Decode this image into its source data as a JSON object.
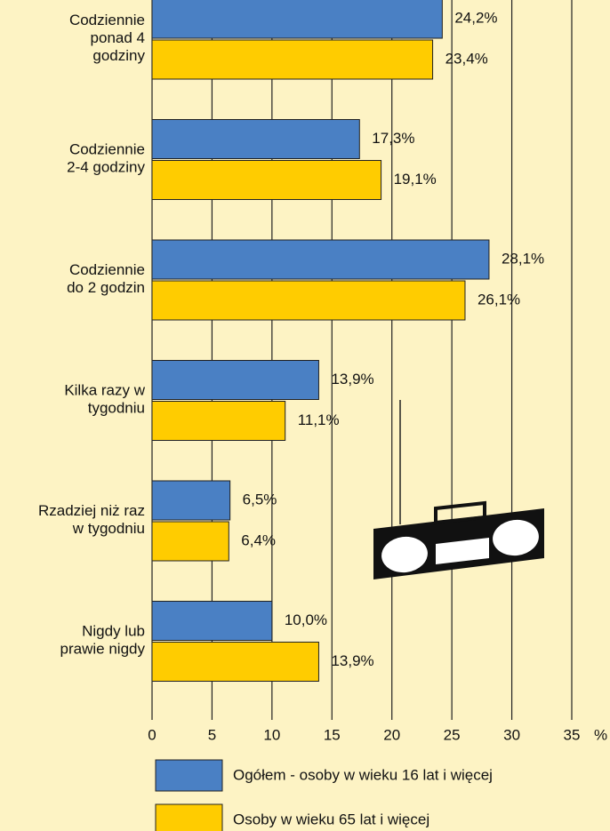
{
  "chart_data": {
    "type": "bar",
    "orientation": "horizontal",
    "categories": [
      "Codziennie\nponad 4\ngodziny",
      "Codziennie\n2-4 godziny",
      "Codziennie\ndo 2 godzin",
      "Kilka razy w\ntygodniu",
      "Rzadziej niż raz\nw tygodniu",
      "Nigdy lub\nprawie nigdy"
    ],
    "series": [
      {
        "name": "Ogółem - osoby w wieku 16 lat i więcej",
        "color": "#4a80c4",
        "values": [
          24.2,
          17.3,
          28.1,
          13.9,
          6.5,
          10.0
        ],
        "value_labels": [
          "24,2%",
          "17,3%",
          "28,1%",
          "13,9%",
          "6,5%",
          "10,0%"
        ]
      },
      {
        "name": "Osoby w wieku 65 lat i więcej",
        "color": "#ffcc00",
        "values": [
          23.4,
          19.1,
          26.1,
          11.1,
          6.4,
          13.9
        ],
        "value_labels": [
          "23,4%",
          "19,1%",
          "26,1%",
          "11,1%",
          "6,4%",
          "13,9%"
        ]
      }
    ],
    "xlabel": "%",
    "xlim": [
      0,
      35
    ],
    "xticks": [
      0,
      5,
      10,
      15,
      20,
      25,
      30,
      35
    ],
    "grid": true
  }
}
